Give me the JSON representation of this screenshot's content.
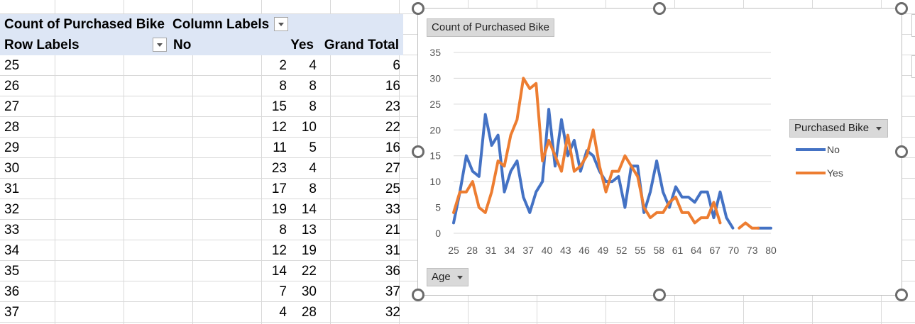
{
  "pivot": {
    "title": "Count of Purchased Bike",
    "column_labels": "Column Labels",
    "row_labels": "Row Labels",
    "col_no": "No",
    "col_yes": "Yes",
    "col_total": "Grand Total",
    "rows": [
      {
        "age": "25",
        "no": "2",
        "yes": "4",
        "total": "6"
      },
      {
        "age": "26",
        "no": "8",
        "yes": "8",
        "total": "16"
      },
      {
        "age": "27",
        "no": "15",
        "yes": "8",
        "total": "23"
      },
      {
        "age": "28",
        "no": "12",
        "yes": "10",
        "total": "22"
      },
      {
        "age": "29",
        "no": "11",
        "yes": "5",
        "total": "16"
      },
      {
        "age": "30",
        "no": "23",
        "yes": "4",
        "total": "27"
      },
      {
        "age": "31",
        "no": "17",
        "yes": "8",
        "total": "25"
      },
      {
        "age": "32",
        "no": "19",
        "yes": "14",
        "total": "33"
      },
      {
        "age": "33",
        "no": "8",
        "yes": "13",
        "total": "21"
      },
      {
        "age": "34",
        "no": "12",
        "yes": "19",
        "total": "31"
      },
      {
        "age": "35",
        "no": "14",
        "yes": "22",
        "total": "36"
      },
      {
        "age": "36",
        "no": "7",
        "yes": "30",
        "total": "37"
      },
      {
        "age": "37",
        "no": "4",
        "yes": "28",
        "total": "32"
      }
    ]
  },
  "chart": {
    "value_button": "Count of Purchased Bike",
    "axis_button": "Age",
    "legend_button": "Purchased Bike",
    "colors": {
      "no": "#4472c4",
      "yes": "#ed7d31"
    }
  },
  "chart_data": {
    "type": "line",
    "ylim": [
      0,
      35
    ],
    "yticks": [
      0,
      5,
      10,
      15,
      20,
      25,
      30,
      35
    ],
    "x_tick_labels": [
      "25",
      "28",
      "31",
      "34",
      "37",
      "40",
      "43",
      "46",
      "49",
      "52",
      "55",
      "58",
      "61",
      "64",
      "67",
      "70",
      "73",
      "80"
    ],
    "series": [
      {
        "name": "No",
        "values": [
          2,
          8,
          15,
          12,
          11,
          23,
          17,
          19,
          8,
          12,
          14,
          7,
          4,
          8,
          10,
          24,
          13,
          22,
          15,
          18,
          12,
          16,
          15,
          12,
          10,
          10,
          11,
          5,
          13,
          13,
          4,
          8,
          14,
          8,
          5,
          9,
          7,
          7,
          6,
          8,
          8,
          3,
          8,
          3,
          1,
          null,
          null,
          null,
          1,
          1,
          1
        ]
      },
      {
        "name": "Yes",
        "values": [
          4,
          8,
          8,
          10,
          5,
          4,
          8,
          14,
          13,
          19,
          22,
          30,
          28,
          29,
          14,
          18,
          15,
          12,
          19,
          12,
          13,
          15,
          20,
          13,
          8,
          12,
          12,
          15,
          13,
          11,
          5,
          3,
          4,
          4,
          6,
          7,
          4,
          4,
          2,
          3,
          3,
          6,
          2,
          null,
          null,
          1,
          2,
          1,
          1,
          null,
          null
        ]
      }
    ]
  }
}
